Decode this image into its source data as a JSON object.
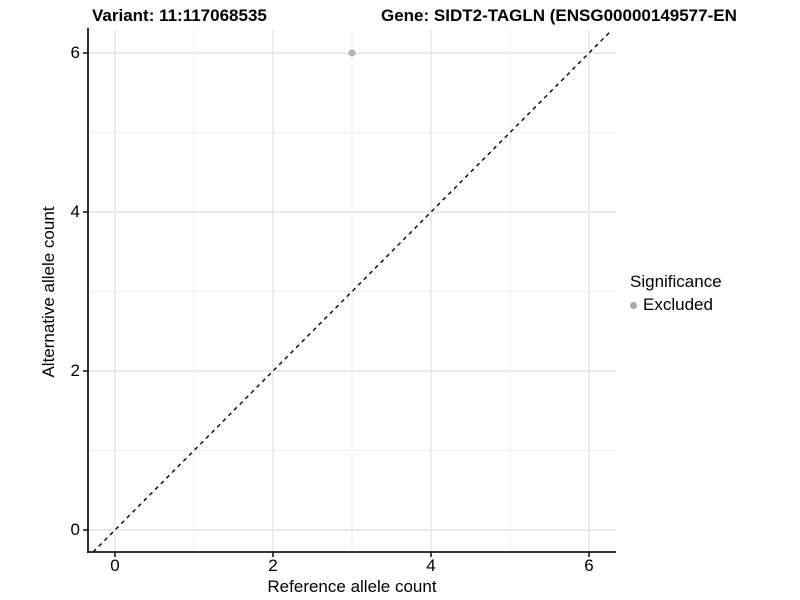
{
  "header": {
    "title_left": "Variant: 11:117068535",
    "title_right": "Gene: SIDT2-TAGLN (ENSG00000149577-EN"
  },
  "chart_data": {
    "type": "scatter",
    "title_left": "Variant: 11:117068535",
    "title_right": "Gene: SIDT2-TAGLN (ENSG00000149577-EN",
    "xlabel": "Reference allele count",
    "ylabel": "Alternative allele count",
    "xticks": [
      0,
      2,
      4,
      6
    ],
    "yticks": [
      0,
      2,
      4,
      6
    ],
    "minor_gridlines_x": [
      1,
      3,
      5
    ],
    "minor_gridlines_y": [
      1,
      3,
      5
    ],
    "xlim": [
      -0.34,
      6.34
    ],
    "ylim": [
      -0.28,
      6.29
    ],
    "grid": true,
    "identity_line": {
      "equation": "y = x",
      "style": "dashed",
      "color": "#000000"
    },
    "series": [
      {
        "name": "Excluded",
        "color": "#b5b5b5",
        "points": [
          {
            "x": 3,
            "y": 6
          }
        ]
      }
    ],
    "legend": {
      "position": "right",
      "title": "Significance",
      "entries": [
        {
          "label": "Excluded",
          "color": "#a9a9a9"
        }
      ]
    },
    "colors": {
      "major_grid": "#e4e4e4",
      "minor_grid": "#efefef",
      "axis_line": "#1a1a1a",
      "tick": "#1a1a1a"
    }
  }
}
